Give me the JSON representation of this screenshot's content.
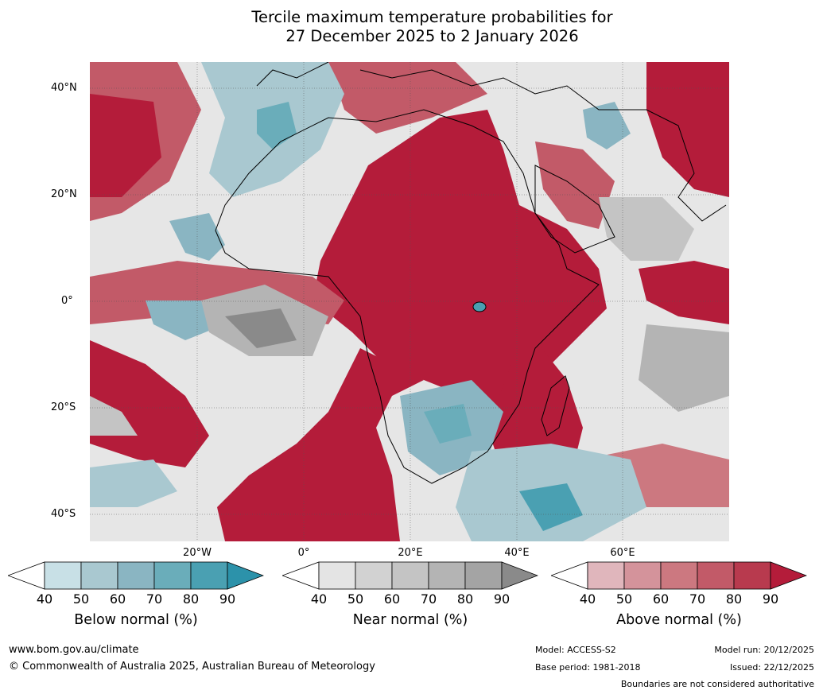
{
  "title": {
    "line1": "Tercile maximum temperature probabilities for",
    "line2": "27 December 2025 to 2 January 2026"
  },
  "map": {
    "lat_labels": [
      "40°N",
      "20°N",
      "0°",
      "20°S",
      "40°S"
    ],
    "lon_labels": [
      "20°W",
      "0°",
      "20°E",
      "40°E",
      "60°E"
    ]
  },
  "legends": {
    "below": {
      "label": "Below normal (%)",
      "ticks": [
        "40",
        "50",
        "60",
        "70",
        "80",
        "90"
      ],
      "colors": [
        "#ffffff",
        "#c8e0e6",
        "#a9c8d0",
        "#8ab5c2",
        "#6aadba",
        "#4aa0b2",
        "#2c92aa"
      ]
    },
    "near": {
      "label": "Near normal (%)",
      "ticks": [
        "40",
        "50",
        "60",
        "70",
        "80",
        "90"
      ],
      "colors": [
        "#ffffff",
        "#e4e4e4",
        "#d2d2d2",
        "#c4c4c4",
        "#b4b4b4",
        "#a4a4a4",
        "#8a8a8a"
      ]
    },
    "above": {
      "label": "Above normal (%)",
      "ticks": [
        "40",
        "50",
        "60",
        "70",
        "80",
        "90"
      ],
      "colors": [
        "#ffffff",
        "#e0b6bc",
        "#d4939b",
        "#cc7880",
        "#c25a68",
        "#b83a4e",
        "#b41c3a"
      ]
    }
  },
  "footer": {
    "website": "www.bom.gov.au/climate",
    "copyright": "© Commonwealth of Australia 2025, Australian Bureau of Meteorology",
    "model": "Model: ACCESS-S2",
    "base_period": "Base period: 1981-2018",
    "model_run": "Model run: 20/12/2025",
    "issued": "Issued: 22/12/2025",
    "disclaimer": "Boundaries are not considered authoritative"
  },
  "colors": {
    "above_dark": "#b41c3a",
    "above_mid": "#c25a68",
    "above_light": "#e0b6bc",
    "below_dark": "#2c92aa",
    "below_mid": "#8ab5c2",
    "below_light": "#c8e0e6",
    "near_dark": "#8a8a8a",
    "near_mid": "#b4b4b4",
    "near_light": "#e4e4e4"
  }
}
